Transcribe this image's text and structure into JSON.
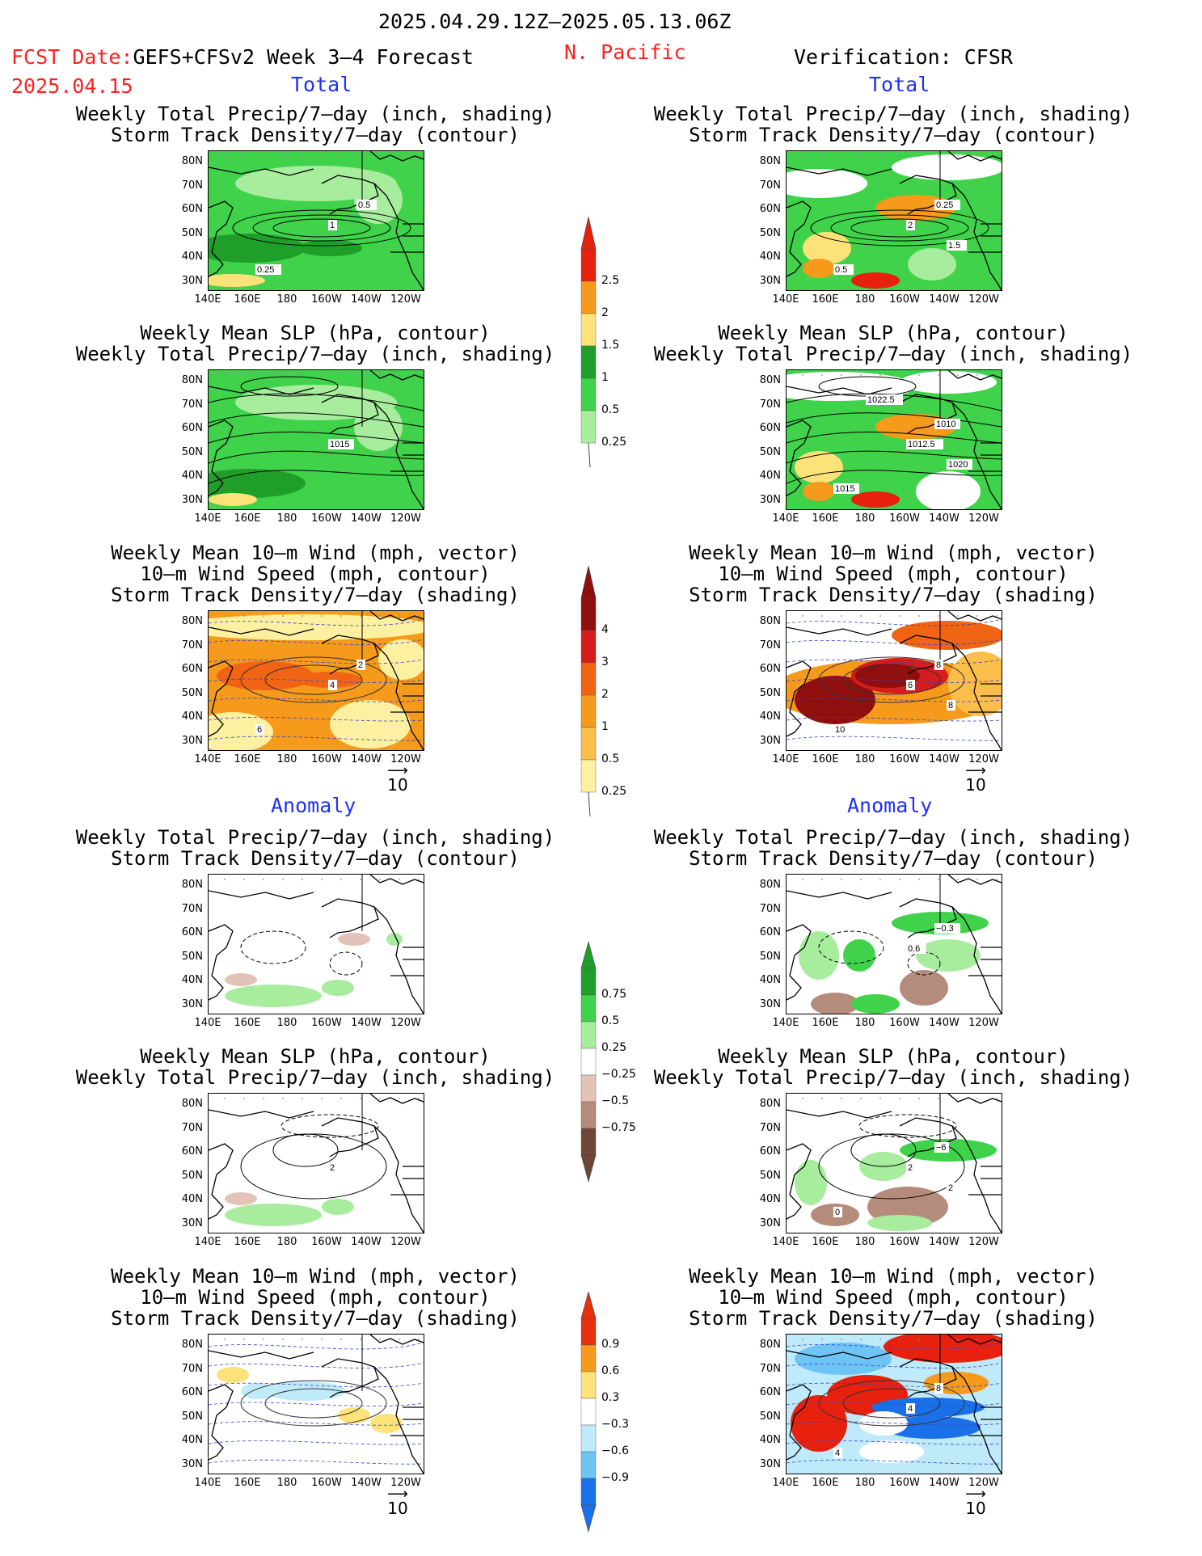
{
  "header": {
    "date_range": "2025.04.29.12Z–2025.05.13.06Z",
    "fcst_date_label": "FCST Date:",
    "fcst_model": "GEFS+CFSv2 Week 3–4 Forecast",
    "fcst_date": "2025.04.15",
    "region": "N. Pacific",
    "verification": "Verification: CFSR"
  },
  "sections": {
    "total": "Total",
    "anomaly": "Anomaly"
  },
  "titles": {
    "precip_storm": [
      "Weekly Total Precip/7–day (inch, shading)",
      "Storm Track Density/7–day (contour)"
    ],
    "slp_precip": [
      "Weekly Mean SLP (hPa, contour)",
      "Weekly Total Precip/7–day (inch, shading)"
    ],
    "wind_storm": [
      "Weekly Mean 10–m Wind (mph, vector)",
      "10–m Wind Speed (mph, contour)",
      "Storm Track Density/7–day (shading)"
    ]
  },
  "axes": {
    "lat_ticks": [
      "80N",
      "70N",
      "60N",
      "50N",
      "40N",
      "30N"
    ],
    "lon_ticks": [
      "140E",
      "160E",
      "180",
      "160W",
      "140W",
      "120W"
    ]
  },
  "vector_ref": "10",
  "colorbars": {
    "precip_total": {
      "labels": [
        "2.5",
        "2",
        "1.5",
        "1",
        "0.5",
        "0.25"
      ],
      "colors": [
        "#e8200e",
        "#f59a1a",
        "#fde27a",
        "#1f9e2a",
        "#3fd24a",
        "#a8ec9e"
      ]
    },
    "storm_total": {
      "labels": [
        "4",
        "3",
        "2",
        "1",
        "0.5",
        "0.25"
      ],
      "colors": [
        "#8f0e0e",
        "#d41d1d",
        "#f06414",
        "#f59a1a",
        "#fcbe4a",
        "#fdf0a0"
      ]
    },
    "precip_anom": {
      "labels": [
        "0.75",
        "0.5",
        "0.25",
        "−0.25",
        "−0.5",
        "−0.75"
      ],
      "colors": [
        "#1f9e2a",
        "#3fd24a",
        "#a8ec9e",
        "#ffffff",
        "#e3c3b8",
        "#b58c7c",
        "#6e4636"
      ]
    },
    "storm_anom": {
      "labels": [
        "0.9",
        "0.6",
        "0.3",
        "−0.3",
        "−0.6",
        "−0.9"
      ],
      "colors": [
        "#e8300e",
        "#f59a1a",
        "#fde27a",
        "#ffffff",
        "#bfeafa",
        "#6ec4f5",
        "#1a70e8"
      ]
    }
  },
  "contour_labels": {
    "fc_precip": [
      "1",
      "0.5",
      "0.25"
    ],
    "ob_precip": [
      "2",
      "0.25",
      "0.5",
      "1.5"
    ],
    "fc_slp": [
      "1015"
    ],
    "ob_slp": [
      "1012.5",
      "1010",
      "1015",
      "1020",
      "1022.5"
    ],
    "fc_wind": [
      "4",
      "2",
      "6"
    ],
    "ob_wind": [
      "6",
      "8",
      "10",
      "8"
    ],
    "ob_precip_anom": [
      "0.6",
      "−0.3"
    ],
    "fc_slp_anom": [
      "2"
    ],
    "ob_slp_anom": [
      "2",
      "−6",
      "0",
      "2"
    ],
    "ob_wind_anom": [
      "4",
      "8",
      "4"
    ]
  }
}
